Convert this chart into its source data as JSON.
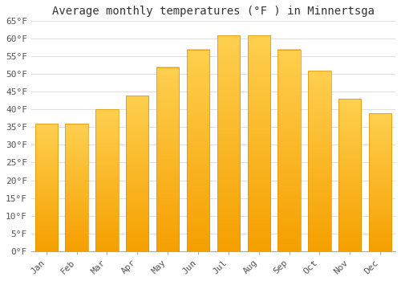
{
  "title": "Average monthly temperatures (°F ) in Minnertsga",
  "months": [
    "Jan",
    "Feb",
    "Mar",
    "Apr",
    "May",
    "Jun",
    "Jul",
    "Aug",
    "Sep",
    "Oct",
    "Nov",
    "Dec"
  ],
  "values": [
    36,
    36,
    40,
    44,
    52,
    57,
    61,
    61,
    57,
    51,
    43,
    39
  ],
  "bar_color_top": "#FFC200",
  "bar_color_bottom": "#F5A800",
  "bar_color_left": "#FFD966",
  "background_color": "#FFFFFF",
  "ylim": [
    0,
    65
  ],
  "yticks": [
    0,
    5,
    10,
    15,
    20,
    25,
    30,
    35,
    40,
    45,
    50,
    55,
    60,
    65
  ],
  "ytick_labels": [
    "0°F",
    "5°F",
    "10°F",
    "15°F",
    "20°F",
    "25°F",
    "30°F",
    "35°F",
    "40°F",
    "45°F",
    "50°F",
    "55°F",
    "60°F",
    "65°F"
  ],
  "title_fontsize": 10,
  "tick_fontsize": 8,
  "grid_color": "#e0e0e0",
  "bar_width": 0.75
}
